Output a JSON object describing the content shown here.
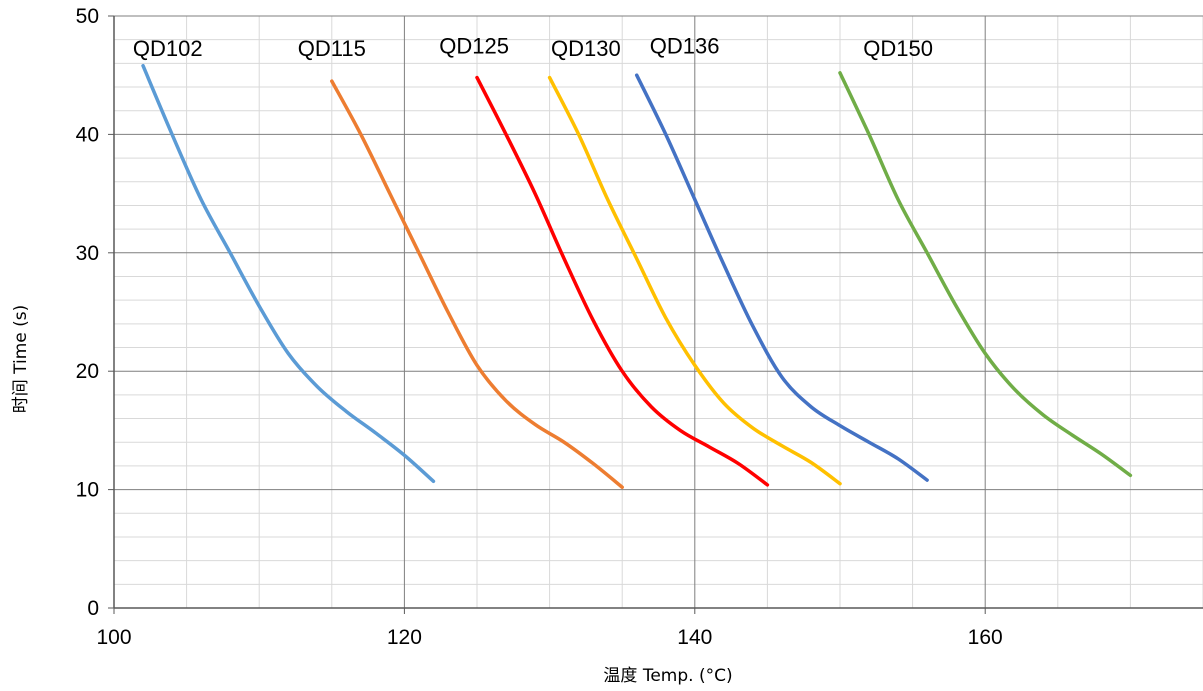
{
  "chart_data": {
    "type": "line",
    "title": "",
    "xlabel": "温度 Temp. (°C)",
    "ylabel": "时间 Time (s)",
    "xlim": [
      100,
      175
    ],
    "ylim": [
      0,
      50
    ],
    "x_ticks": [
      100,
      120,
      140,
      160
    ],
    "y_ticks": [
      0,
      10,
      20,
      30,
      40,
      50
    ],
    "x_major_grid_step": 20,
    "x_minor_grid_step": 5,
    "y_major_grid_step": 10,
    "y_minor_grid_step": 2,
    "grid": true,
    "legend": "none",
    "series": [
      {
        "name": "QD102",
        "color": "#5b9bd5",
        "x": [
          102,
          104,
          106,
          108,
          110,
          112,
          114,
          116,
          118,
          120,
          122
        ],
        "y": [
          45.8,
          40,
          34.5,
          30,
          25.5,
          21.5,
          18.7,
          16.6,
          14.8,
          12.9,
          10.7
        ]
      },
      {
        "name": "QD115",
        "color": "#ed7d31",
        "x": [
          115,
          117,
          119,
          121,
          123,
          125,
          127,
          129,
          131,
          133,
          135
        ],
        "y": [
          44.5,
          40,
          35,
          30,
          25,
          20.5,
          17.5,
          15.5,
          14,
          12.2,
          10.2
        ]
      },
      {
        "name": "QD125",
        "color": "#ff0000",
        "x": [
          125,
          127,
          129,
          131,
          133,
          135,
          137,
          139,
          141,
          143,
          145
        ],
        "y": [
          44.8,
          40,
          35,
          29.5,
          24.3,
          20,
          17,
          15,
          13.6,
          12.2,
          10.4
        ]
      },
      {
        "name": "QD130",
        "color": "#ffc000",
        "x": [
          130,
          132,
          134,
          136,
          138,
          140,
          142,
          144,
          146,
          148,
          150
        ],
        "y": [
          44.8,
          40,
          34.5,
          29.5,
          24.5,
          20.5,
          17.3,
          15.2,
          13.7,
          12.3,
          10.5
        ]
      },
      {
        "name": "QD136",
        "color": "#4472c4",
        "x": [
          136,
          138,
          140,
          142,
          144,
          146,
          148,
          150,
          152,
          154,
          156
        ],
        "y": [
          45,
          40,
          34.5,
          29,
          23.8,
          19.5,
          17,
          15.4,
          14,
          12.6,
          10.8
        ]
      },
      {
        "name": "QD150",
        "color": "#70ad47",
        "x": [
          150,
          152,
          154,
          156,
          158,
          160,
          162,
          164,
          166,
          168,
          170
        ],
        "y": [
          45.2,
          40,
          34.5,
          30,
          25.5,
          21.5,
          18.5,
          16.3,
          14.6,
          13,
          11.2
        ]
      }
    ],
    "annotations": [
      {
        "text": "QD102",
        "x": 103.7,
        "y": 47.3
      },
      {
        "text": "QD115",
        "x": 115,
        "y": 47.3
      },
      {
        "text": "QD125",
        "x": 124.8,
        "y": 47.5
      },
      {
        "text": "QD130",
        "x": 132.5,
        "y": 47.3
      },
      {
        "text": "QD136",
        "x": 139.3,
        "y": 47.5
      },
      {
        "text": "QD150",
        "x": 154,
        "y": 47.3
      }
    ]
  }
}
